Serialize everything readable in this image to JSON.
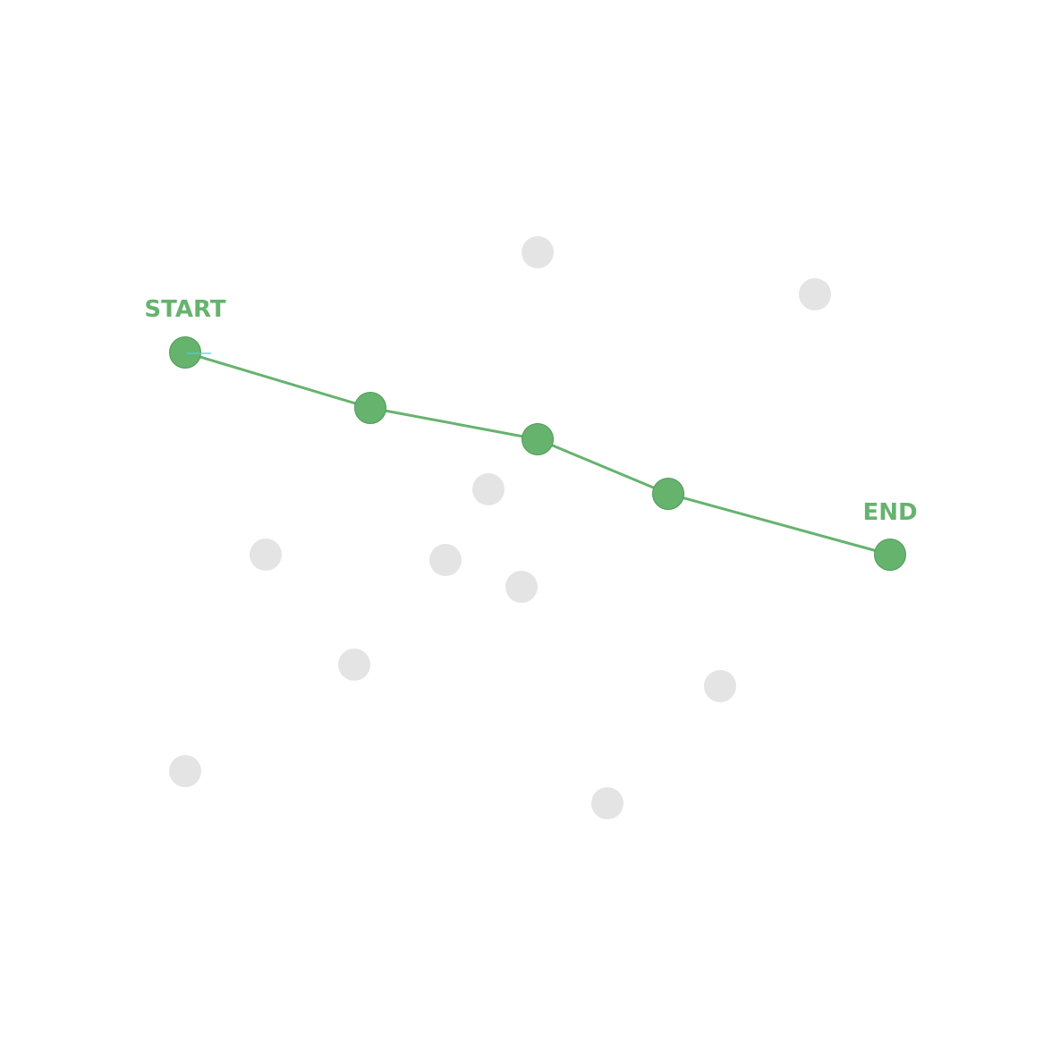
{
  "labels": {
    "start": "START",
    "end": "END"
  },
  "colors": {
    "path": "#66b36e",
    "path_node_stroke": "#4f9a57",
    "inactive_node": "#e4e4e4",
    "cursor": "#4fd0d8",
    "label": "#66b36e"
  }
}
